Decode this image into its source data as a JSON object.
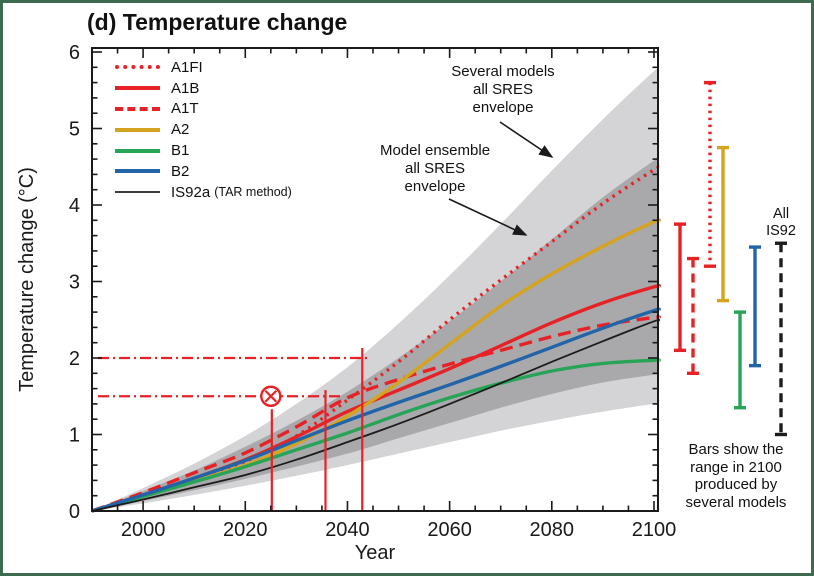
{
  "title": "(d) Temperature change",
  "axes": {
    "x_label": "Year",
    "y_label": "Temperature change (°C)",
    "x_ticks": [
      2000,
      2020,
      2040,
      2060,
      2080,
      2100
    ],
    "x_minor_step": 5,
    "y_ticks": [
      0,
      1,
      2,
      3,
      4,
      5,
      6
    ],
    "y_minor_step": 0.2,
    "x_range": [
      1990,
      2100
    ],
    "y_range": [
      0,
      6
    ]
  },
  "legend": [
    {
      "id": "A1FI",
      "label": "A1FI",
      "color": "#e62226",
      "style": "dotted",
      "weight": 4
    },
    {
      "id": "A1B",
      "label": "A1B",
      "color": "#e62226",
      "style": "solid",
      "weight": 4
    },
    {
      "id": "A1T",
      "label": "A1T",
      "color": "#e62226",
      "style": "dashed",
      "weight": 4
    },
    {
      "id": "A2",
      "label": "A2",
      "color": "#d4a420",
      "style": "solid",
      "weight": 4
    },
    {
      "id": "B1",
      "label": "B1",
      "color": "#28a457",
      "style": "solid",
      "weight": 4
    },
    {
      "id": "B2",
      "label": "B2",
      "color": "#2264a8",
      "style": "solid",
      "weight": 4
    },
    {
      "id": "IS92a",
      "label": "IS92a",
      "suffix": "(TAR method)",
      "color": "#3c3c3c",
      "style": "solid",
      "weight": 2
    }
  ],
  "annotations": {
    "several_models": [
      "Several models",
      "all SRES",
      "envelope"
    ],
    "model_ensemble": [
      "Model ensemble",
      "all SRES",
      "envelope"
    ],
    "all_is92": [
      "All",
      "IS92"
    ],
    "bars_note": [
      "Bars show the",
      "range in 2100",
      "produced by",
      "several models"
    ]
  },
  "chart_data": {
    "type": "line",
    "title": "(d) Temperature change",
    "xlabel": "Year",
    "ylabel": "Temperature change (°C)",
    "xlim": [
      1990,
      2100
    ],
    "ylim": [
      0,
      6
    ],
    "grid": false,
    "x_years": [
      1990,
      2000,
      2010,
      2020,
      2030,
      2040,
      2050,
      2060,
      2070,
      2080,
      2090,
      2100
    ],
    "series": [
      {
        "name": "A1FI",
        "color": "#e62226",
        "dash": "dotted",
        "width": 3.4,
        "values": [
          0,
          0.2,
          0.4,
          0.65,
          0.98,
          1.45,
          1.95,
          2.5,
          3.02,
          3.52,
          4.02,
          4.46
        ]
      },
      {
        "name": "A1B",
        "color": "#e62226",
        "dash": "solid",
        "width": 3.4,
        "values": [
          0,
          0.21,
          0.43,
          0.67,
          0.97,
          1.3,
          1.58,
          1.86,
          2.16,
          2.46,
          2.72,
          2.93
        ]
      },
      {
        "name": "A1T",
        "color": "#e62226",
        "dash": "dashed",
        "width": 3.4,
        "values": [
          0,
          0.24,
          0.5,
          0.76,
          1.1,
          1.48,
          1.72,
          1.92,
          2.1,
          2.28,
          2.43,
          2.53
        ]
      },
      {
        "name": "A2",
        "color": "#d4a420",
        "dash": "solid",
        "width": 3.4,
        "values": [
          0,
          0.19,
          0.39,
          0.6,
          0.88,
          1.24,
          1.68,
          2.18,
          2.68,
          3.1,
          3.46,
          3.78
        ]
      },
      {
        "name": "B1",
        "color": "#28a457",
        "dash": "solid",
        "width": 3.4,
        "values": [
          0,
          0.19,
          0.38,
          0.58,
          0.8,
          1.02,
          1.26,
          1.48,
          1.67,
          1.83,
          1.93,
          1.97
        ]
      },
      {
        "name": "B2",
        "color": "#2264a8",
        "dash": "solid",
        "width": 3.4,
        "values": [
          0,
          0.21,
          0.43,
          0.66,
          0.92,
          1.18,
          1.42,
          1.65,
          1.89,
          2.14,
          2.39,
          2.62
        ]
      },
      {
        "name": "IS92a (TAR method)",
        "color": "#1c1c1c",
        "dash": "solid",
        "width": 1.8,
        "values": [
          0,
          0.15,
          0.31,
          0.47,
          0.67,
          0.9,
          1.14,
          1.4,
          1.67,
          1.95,
          2.22,
          2.48
        ]
      }
    ],
    "envelopes": [
      {
        "name": "Several models all SRES envelope",
        "color": "#d4d4d6",
        "top": [
          0,
          0.3,
          0.62,
          0.98,
          1.4,
          1.88,
          2.45,
          3.08,
          3.75,
          4.45,
          5.12,
          5.75
        ],
        "bottom": [
          0,
          0.1,
          0.21,
          0.33,
          0.46,
          0.6,
          0.75,
          0.9,
          1.05,
          1.18,
          1.3,
          1.4
        ]
      },
      {
        "name": "Model ensemble all SRES envelope",
        "color": "#a9a9ac",
        "top": [
          0,
          0.26,
          0.53,
          0.84,
          1.18,
          1.56,
          2.0,
          2.48,
          3.0,
          3.55,
          4.1,
          4.58
        ],
        "bottom": [
          0,
          0.13,
          0.27,
          0.42,
          0.58,
          0.75,
          0.95,
          1.15,
          1.35,
          1.53,
          1.68,
          1.78
        ]
      }
    ],
    "bars_2100": [
      {
        "name": "A1B",
        "color": "#e62226",
        "style": "solid",
        "range": [
          2.1,
          3.75
        ]
      },
      {
        "name": "A1T",
        "color": "#e62226",
        "style": "dashed",
        "range": [
          1.8,
          3.3
        ]
      },
      {
        "name": "A1FI",
        "color": "#e62226",
        "style": "dotted",
        "range": [
          3.2,
          5.6
        ]
      },
      {
        "name": "A2",
        "color": "#d4a420",
        "style": "solid",
        "range": [
          2.75,
          4.75
        ]
      },
      {
        "name": "B1",
        "color": "#28a457",
        "style": "solid",
        "range": [
          1.35,
          2.6
        ]
      },
      {
        "name": "B2",
        "color": "#2264a8",
        "style": "solid",
        "range": [
          1.9,
          3.45
        ]
      },
      {
        "name": "All IS92",
        "color": "#1c1c1c",
        "style": "dashed",
        "range": [
          1.0,
          3.5
        ]
      }
    ],
    "overlay": {
      "color": "#e62226",
      "threshold_lines": [
        {
          "value": 2.0,
          "end_year": 2044
        },
        {
          "value": 1.5,
          "end_year": 2039
        }
      ],
      "marker": {
        "year": 2025,
        "value": 1.5,
        "symbol": "circled-x"
      },
      "vlines": [
        {
          "year": 2025.2,
          "top_value": 1.33
        },
        {
          "year": 2035.7,
          "top_value": 1.58
        },
        {
          "year": 2042.9,
          "top_value": 2.13
        }
      ]
    }
  }
}
